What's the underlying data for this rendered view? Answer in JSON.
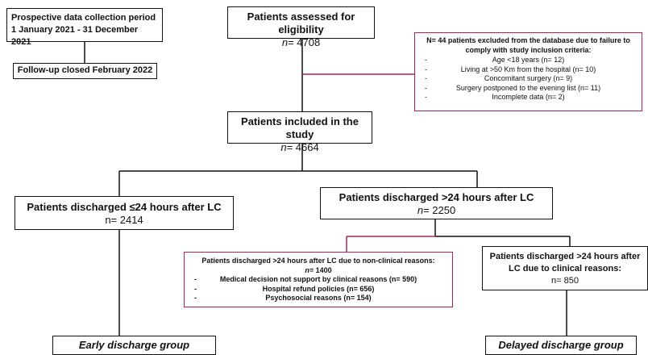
{
  "period": {
    "lines": [
      "Prospective data collection period",
      "1 January 2021 - 31 December 2021"
    ]
  },
  "followup": {
    "label": "Follow-up closed February 2022"
  },
  "assessed": {
    "title": "Patients assessed for eligibility",
    "n_prefix": "n=",
    "n": " 4708"
  },
  "excluded": {
    "title": "N= 44 patients excluded from the database due to failure to comply with study inclusion criteria:",
    "bullet": "-",
    "items": [
      "Age <18 years (n= 12)",
      "Living at >50 Km from the hospital (n= 10)",
      "Concomitant surgery (n= 9)",
      "Surgery postponed to the evening list (n= 11)",
      "Incomplete data (n= 2)"
    ]
  },
  "included": {
    "title": "Patients included in the study",
    "n_prefix": "n=",
    "n": " 4664"
  },
  "early": {
    "title": "Patients discharged ≤24 hours after LC",
    "n_prefix": "n=",
    "n": " 2414"
  },
  "late": {
    "title": "Patients discharged >24 hours after LC",
    "n_prefix": "n=",
    "n": " 2250"
  },
  "nonclinical": {
    "title": "Patients discharged >24 hours after LC due to non-clinical reasons:",
    "n_prefix": "n=",
    "n": "1400",
    "bullet": "-",
    "items": [
      "Medical decision not support by clinical reasons (n= 590)",
      "Hospital refund policies (n= 656)",
      "Psychosocial reasons (n= 154)"
    ]
  },
  "clinical": {
    "title": "Patients discharged >24 hours after LC due to clinical reasons:",
    "n_prefix": "n=",
    "n": " 850"
  },
  "early_group": {
    "label": "Early discharge group"
  },
  "delayed_group": {
    "label": "Delayed discharge group"
  }
}
